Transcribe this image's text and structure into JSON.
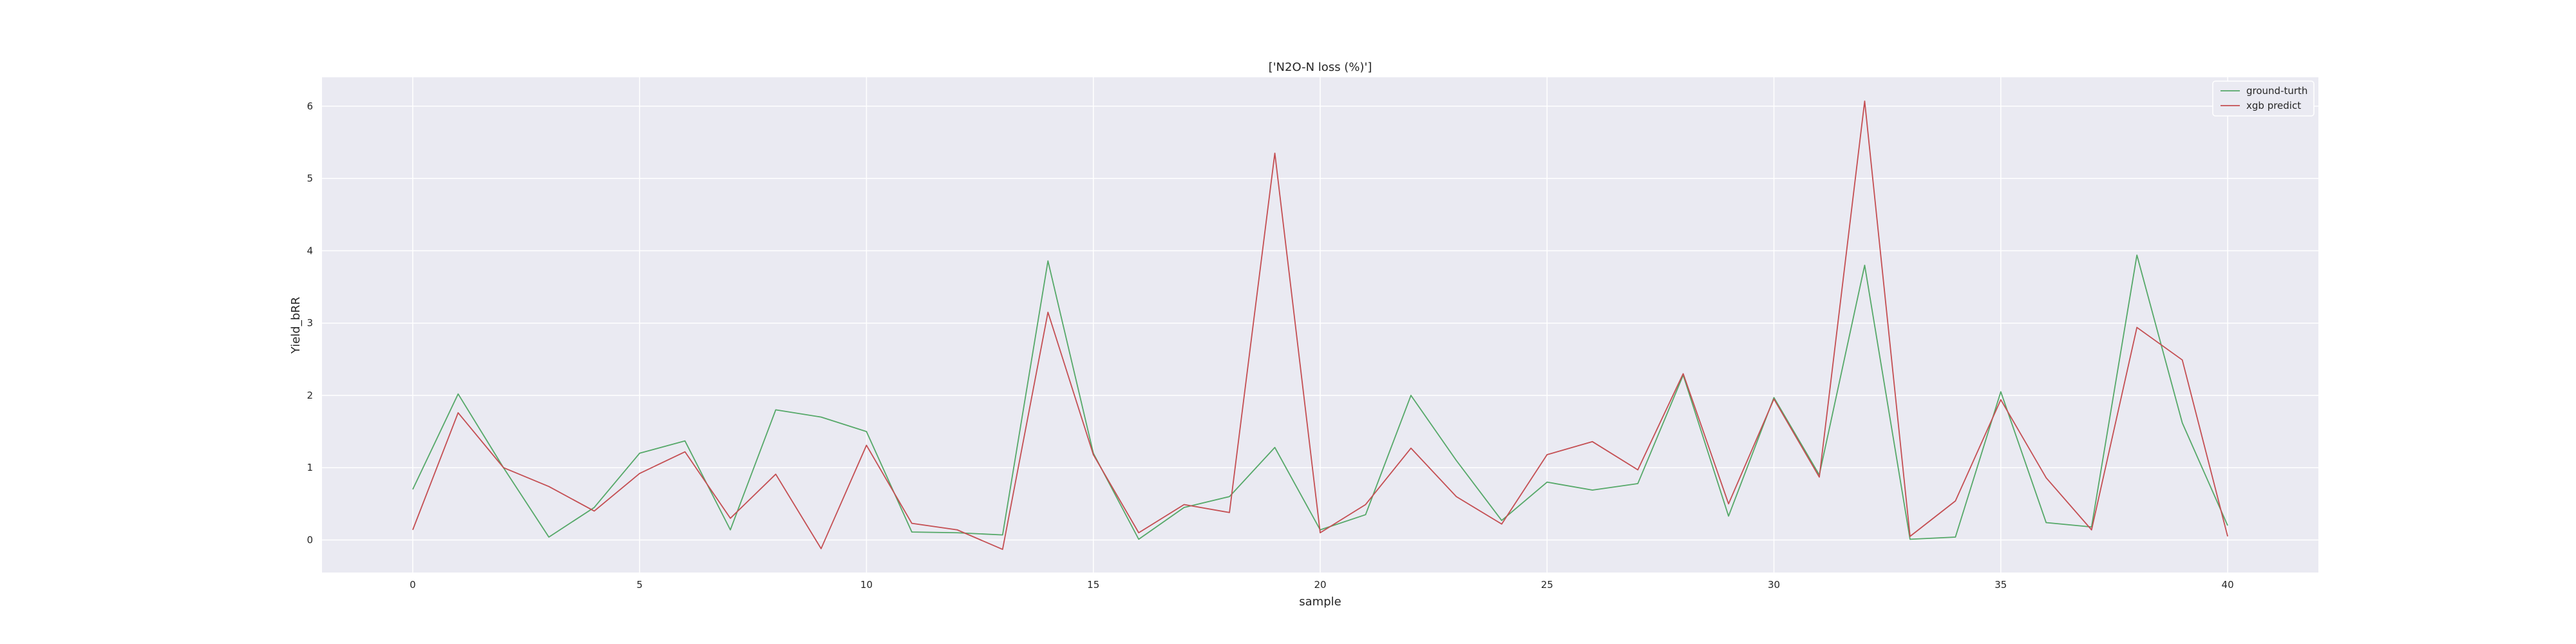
{
  "chart_data": {
    "type": "line",
    "title": "['N2O-N loss (%)']",
    "xlabel": "sample",
    "ylabel": "Yield_bRR",
    "xlim": [
      -2,
      42
    ],
    "ylim": [
      -0.45,
      6.4
    ],
    "x_ticks": [
      0,
      5,
      10,
      15,
      20,
      25,
      30,
      35,
      40
    ],
    "y_ticks": [
      0,
      1,
      2,
      3,
      4,
      5,
      6
    ],
    "grid": true,
    "legend_position": "top-right",
    "x": [
      0,
      1,
      2,
      3,
      4,
      5,
      6,
      7,
      8,
      9,
      10,
      11,
      12,
      13,
      14,
      15,
      16,
      17,
      18,
      19,
      20,
      21,
      22,
      23,
      24,
      25,
      26,
      27,
      28,
      29,
      30,
      31,
      32,
      33,
      34,
      35,
      36,
      37,
      38,
      39,
      40
    ],
    "series": [
      {
        "name": "ground-turth",
        "color": "#55a868",
        "values": [
          0.7,
          2.02,
          1.0,
          0.04,
          0.45,
          1.2,
          1.37,
          0.14,
          1.8,
          1.7,
          1.5,
          0.11,
          0.1,
          0.07,
          3.86,
          1.2,
          0.01,
          0.45,
          0.6,
          1.28,
          0.14,
          0.35,
          2.0,
          1.1,
          0.27,
          0.8,
          0.69,
          0.78,
          2.28,
          0.33,
          1.97,
          0.9,
          3.8,
          0.01,
          0.04,
          2.05,
          0.24,
          0.18,
          3.94,
          1.62,
          0.2
        ]
      },
      {
        "name": "xgb predict",
        "color": "#c44e52",
        "values": [
          0.14,
          1.76,
          1.0,
          0.74,
          0.4,
          0.92,
          1.22,
          0.3,
          0.91,
          -0.12,
          1.31,
          0.23,
          0.14,
          -0.13,
          3.15,
          1.18,
          0.1,
          0.49,
          0.38,
          5.35,
          0.1,
          0.49,
          1.27,
          0.6,
          0.22,
          1.18,
          1.36,
          0.97,
          2.3,
          0.5,
          1.95,
          0.87,
          6.07,
          0.05,
          0.54,
          1.94,
          0.86,
          0.14,
          2.94,
          2.49,
          0.05
        ]
      }
    ]
  },
  "colors": {
    "plot_background": "#eaeaf2",
    "grid": "#ffffff"
  }
}
